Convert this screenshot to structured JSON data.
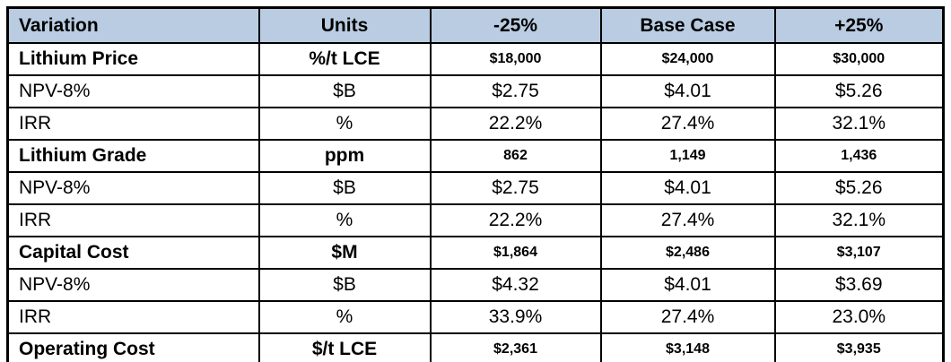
{
  "colors": {
    "header_bg": "#b9cce2",
    "border": "#000000",
    "text": "#000000",
    "page_bg": "#ffffff"
  },
  "table": {
    "columns": [
      "Variation",
      "Units",
      "-25%",
      "Base Case",
      "+25%"
    ],
    "rows": [
      {
        "type": "category",
        "cells": [
          "Lithium Price",
          "%/t LCE",
          "$18,000",
          "$24,000",
          "$30,000"
        ]
      },
      {
        "type": "sub",
        "cells": [
          "NPV-8%",
          "$B",
          "$2.75",
          "$4.01",
          "$5.26"
        ]
      },
      {
        "type": "sub",
        "cells": [
          "IRR",
          "%",
          "22.2%",
          "27.4%",
          "32.1%"
        ]
      },
      {
        "type": "category",
        "cells": [
          "Lithium Grade",
          "ppm",
          "862",
          "1,149",
          "1,436"
        ]
      },
      {
        "type": "sub",
        "cells": [
          "NPV-8%",
          "$B",
          "$2.75",
          "$4.01",
          "$5.26"
        ]
      },
      {
        "type": "sub",
        "cells": [
          "IRR",
          "%",
          "22.2%",
          "27.4%",
          "32.1%"
        ]
      },
      {
        "type": "category",
        "cells": [
          "Capital Cost",
          "$M",
          "$1,864",
          "$2,486",
          "$3,107"
        ]
      },
      {
        "type": "sub",
        "cells": [
          "NPV-8%",
          "$B",
          "$4.32",
          "$4.01",
          "$3.69"
        ]
      },
      {
        "type": "sub",
        "cells": [
          "IRR",
          "%",
          "33.9%",
          "27.4%",
          "23.0%"
        ]
      },
      {
        "type": "category",
        "cells": [
          "Operating Cost",
          "$/t LCE",
          "$2,361",
          "$3,148",
          "$3,935"
        ]
      }
    ]
  }
}
